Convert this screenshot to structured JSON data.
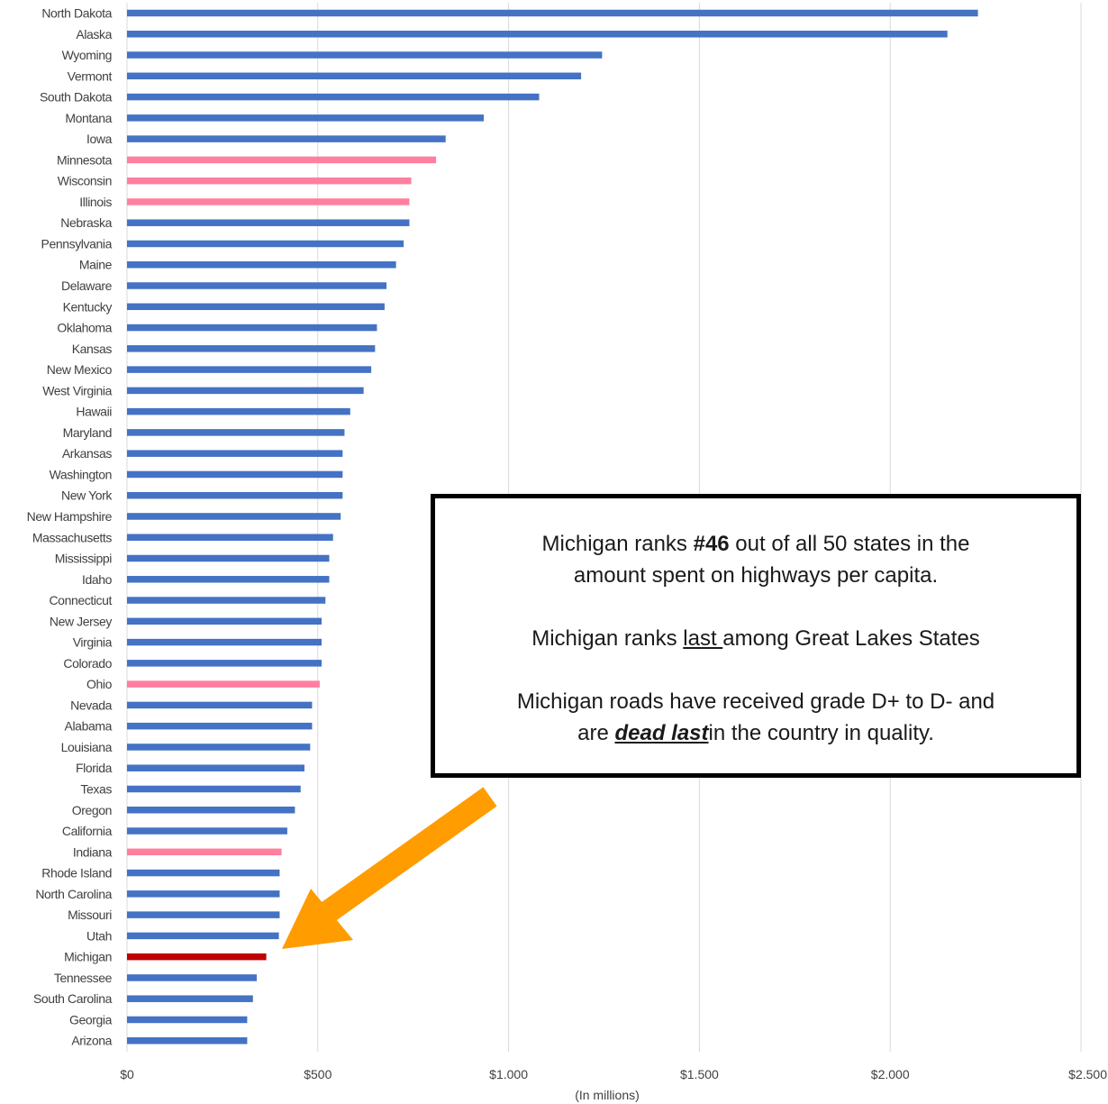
{
  "chart_data": {
    "type": "bar",
    "orientation": "horizontal",
    "categories": [
      "North Dakota",
      "Alaska",
      "Wyoming",
      "Vermont",
      "South Dakota",
      "Montana",
      "Iowa",
      "Minnesota",
      "Wisconsin",
      "Illinois",
      "Nebraska",
      "Pennsylvania",
      "Maine",
      "Delaware",
      "Kentucky",
      "Oklahoma",
      "Kansas",
      "New Mexico",
      "West Virginia",
      "Hawaii",
      "Maryland",
      "Arkansas",
      "Washington",
      "New York",
      "New Hampshire",
      "Massachusetts",
      "Mississippi",
      "Idaho",
      "Connecticut",
      "New Jersey",
      "Virginia",
      "Colorado",
      "Ohio",
      "Nevada",
      "Alabama",
      "Louisiana",
      "Florida",
      "Texas",
      "Oregon",
      "California",
      "Indiana",
      "Rhode Island",
      "North Carolina",
      "Missouri",
      "Utah",
      "Michigan",
      "Tennessee",
      "South Carolina",
      "Georgia",
      "Arizona"
    ],
    "values": [
      2230,
      2150,
      1245,
      1190,
      1080,
      935,
      835,
      810,
      745,
      740,
      740,
      725,
      705,
      680,
      675,
      655,
      650,
      640,
      620,
      585,
      570,
      565,
      565,
      565,
      560,
      540,
      530,
      530,
      520,
      510,
      510,
      510,
      505,
      485,
      485,
      480,
      465,
      455,
      440,
      420,
      405,
      400,
      400,
      400,
      398,
      365,
      340,
      330,
      315,
      315
    ],
    "highlight_great_lakes": [
      "Minnesota",
      "Wisconsin",
      "Illinois",
      "Ohio",
      "Indiana"
    ],
    "highlight_focus": "Michigan",
    "colors": {
      "default": "#4472c4",
      "great_lakes": "#ff7f9f",
      "focus": "#c00000",
      "grid": "#d9d9d9",
      "arrow": "#ff9c00"
    },
    "xlim": [
      0,
      2500
    ],
    "xticks": [
      0,
      500,
      1000,
      1500,
      2000,
      2500
    ],
    "xtick_labels": [
      "$0",
      "$500",
      "$1.000",
      "$1.500",
      "$2.000",
      "$2.500"
    ],
    "xlabel": "(In millions)",
    "grid": true
  },
  "callout": {
    "p1_pre": "Michigan ranks ",
    "p1_strong": "#46",
    "p1_post": " out of all 50 states in the",
    "p1_line2": "amount spent on highways per capita.",
    "p2_pre": "Michigan ranks ",
    "p2_underline": "last ",
    "p2_post": "among Great Lakes States",
    "p3_line1": "Michigan roads have received grade D+ to D- and",
    "p3_pre": "are ",
    "p3_emph": "dead last",
    "p3_post": "in the country in quality."
  }
}
